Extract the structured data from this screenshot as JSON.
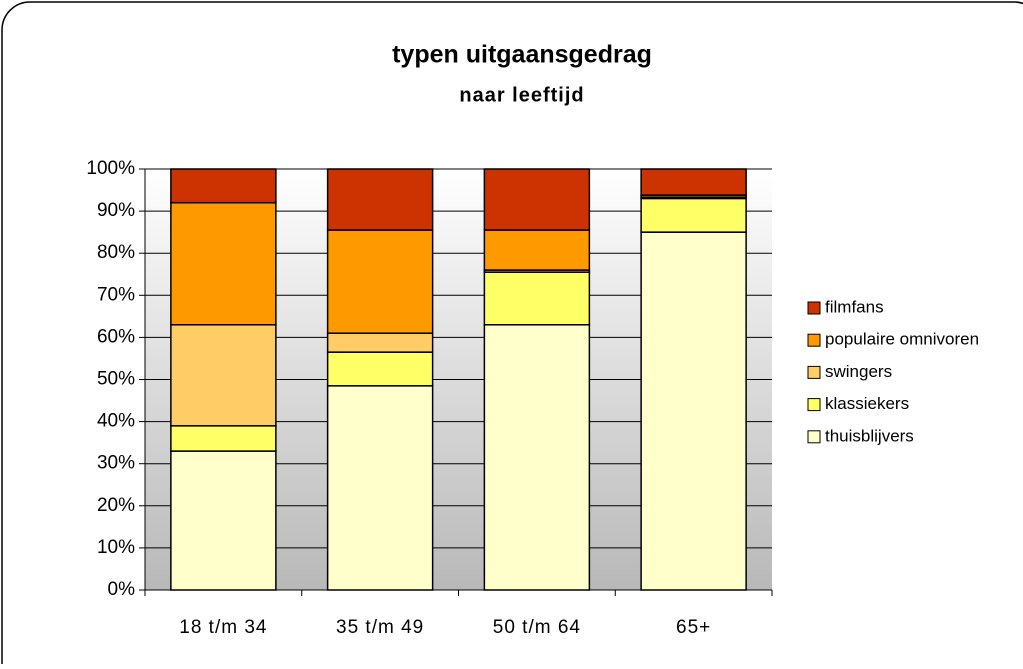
{
  "chart_data": {
    "type": "stacked_bar",
    "title": "typen uitgaansgedrag",
    "subtitle": "naar leeftijd",
    "categories": [
      "18 t/m 34",
      "35 t/m 49",
      "50 t/m 64",
      "65+"
    ],
    "series": [
      {
        "name": "thuisblijvers",
        "color": "#ffffcc",
        "values": [
          33,
          48.5,
          63,
          85
        ]
      },
      {
        "name": "klassiekers",
        "color": "#ffff66",
        "values": [
          6,
          8,
          12.5,
          8
        ]
      },
      {
        "name": "swingers",
        "color": "#ffcc66",
        "values": [
          24,
          4.5,
          0.5,
          0.3
        ]
      },
      {
        "name": "populaire omnivoren",
        "color": "#ff9900",
        "values": [
          29,
          24.5,
          9.5,
          0.5
        ]
      },
      {
        "name": "filmfans",
        "color": "#cc3300",
        "values": [
          8,
          14.5,
          14.5,
          6.2
        ]
      }
    ],
    "ylim": [
      0,
      100
    ],
    "yticks": [
      {
        "value": 0,
        "label": "0%"
      },
      {
        "value": 10,
        "label": "10%"
      },
      {
        "value": 20,
        "label": "20%"
      },
      {
        "value": 30,
        "label": "30%"
      },
      {
        "value": 40,
        "label": "40%"
      },
      {
        "value": 50,
        "label": "50%"
      },
      {
        "value": 60,
        "label": "60%"
      },
      {
        "value": 70,
        "label": "70%"
      },
      {
        "value": 80,
        "label": "80%"
      },
      {
        "value": 90,
        "label": "90%"
      },
      {
        "value": 100,
        "label": "100%"
      }
    ],
    "grid": true,
    "legend": "right"
  }
}
